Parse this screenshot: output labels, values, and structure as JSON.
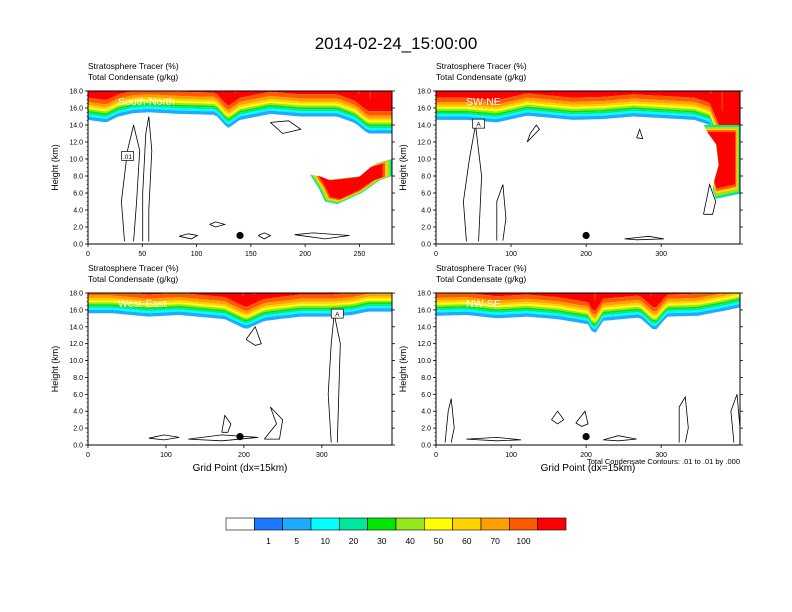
{
  "chart_data": {
    "type": "heatmap",
    "title": "2014-02-24_15:00:00",
    "colorbar": {
      "labels": [
        "1",
        "5",
        "10",
        "20",
        "30",
        "40",
        "50",
        "60",
        "70",
        "100"
      ],
      "colors": [
        "#ffffff",
        "#1e78ff",
        "#1eaaff",
        "#00ffff",
        "#00e69a",
        "#00e600",
        "#96e61e",
        "#ffff00",
        "#ffd200",
        "#ffa000",
        "#ff5a00",
        "#ff0000"
      ]
    },
    "line_colors": {
      "text": "#000000",
      "contour": "#000000"
    },
    "panels": [
      {
        "label": "South-North",
        "fill_title": "Stratosphere Tracer   (%)",
        "contour_title": "Total Condensate   (g/kg)",
        "ylabel": "Height (km)",
        "xlabel": "",
        "xlim": [
          0,
          280
        ],
        "ylim": [
          0,
          18
        ],
        "xticks": [
          "0",
          "50",
          "100",
          "150",
          "200",
          "250"
        ],
        "yticks": [
          "0.0",
          "2.0",
          "4.0",
          "6.0",
          "8.0",
          "10.0",
          "12.0",
          "14.0",
          "16.0",
          "18.0"
        ],
        "contour_label": ".01",
        "marker": {
          "x": 140,
          "y": 1.0
        }
      },
      {
        "label": "SW-NE",
        "fill_title": "Stratosphere Tracer   (%)",
        "contour_title": "Total Condensate   (g/kg)",
        "ylabel": "Height (km)",
        "xlabel": "",
        "xlim": [
          0,
          405
        ],
        "ylim": [
          0,
          18
        ],
        "xticks": [
          "0",
          "100",
          "200",
          "300"
        ],
        "yticks": [
          "0.0",
          "2.0",
          "4.0",
          "6.0",
          "8.0",
          "10.0",
          "12.0",
          "14.0",
          "16.0",
          "18.0"
        ],
        "contour_label": "A",
        "marker": {
          "x": 200,
          "y": 1.0
        }
      },
      {
        "label": "West-East",
        "fill_title": "Stratosphere Tracer   (%)",
        "contour_title": "Total Condensate   (g/kg)",
        "ylabel": "Height (km)",
        "xlabel": "Grid Point (dx=15km)",
        "xlim": [
          0,
          390
        ],
        "ylim": [
          0,
          18
        ],
        "xticks": [
          "0",
          "100",
          "200",
          "300"
        ],
        "yticks": [
          "0.0",
          "2.0",
          "4.0",
          "6.0",
          "8.0",
          "10.0",
          "12.0",
          "14.0",
          "16.0",
          "18.0"
        ],
        "contour_label": "A",
        "marker": {
          "x": 195,
          "y": 1.0
        }
      },
      {
        "label": "NW-SE",
        "fill_title": "Stratosphere Tracer   (%)",
        "contour_title": "Total Condensate   (g/kg)",
        "ylabel": "Height (km)",
        "xlabel": "Grid Point (dx=15km)",
        "xlim": [
          0,
          405
        ],
        "ylim": [
          0,
          18
        ],
        "xticks": [
          "0",
          "100",
          "200",
          "300"
        ],
        "yticks": [
          "0.0",
          "2.0",
          "4.0",
          "6.0",
          "8.0",
          "10.0",
          "12.0",
          "14.0",
          "16.0",
          "18.0"
        ],
        "contour_label": "",
        "marker": {
          "x": 200,
          "y": 1.0
        }
      }
    ],
    "contour_note": "Total Condensate Contours: .01 to .01 by .000"
  }
}
